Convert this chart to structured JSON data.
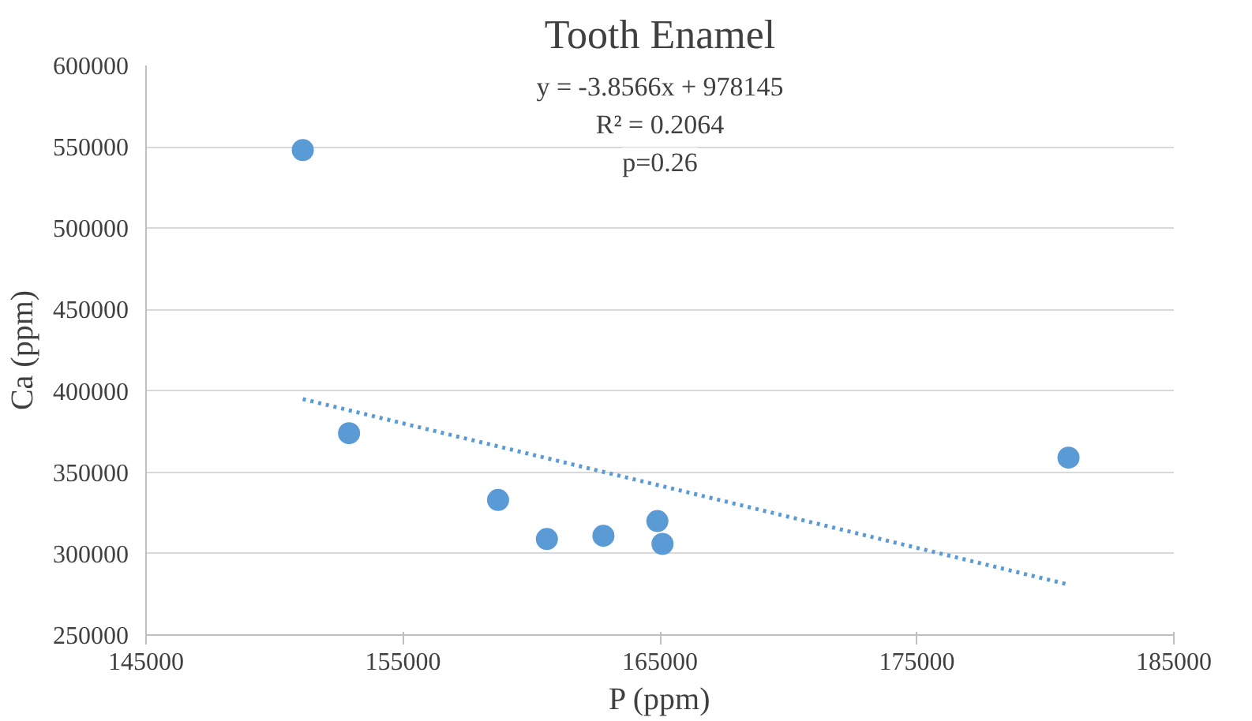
{
  "chart_data": {
    "type": "scatter",
    "title": "Tooth Enamel",
    "xlabel": "P (ppm)",
    "ylabel": "Ca (ppm)",
    "xlim": [
      145000,
      185000
    ],
    "xticks": [
      145000,
      155000,
      165000,
      175000,
      185000
    ],
    "ylim": [
      250000,
      600000
    ],
    "yticks": [
      250000,
      300000,
      350000,
      400000,
      450000,
      500000,
      550000,
      600000
    ],
    "grid": "y",
    "series": [
      {
        "color": "#5b9bd5",
        "marker": "circle",
        "x": [
          151100,
          152900,
          158700,
          160600,
          162800,
          164900,
          165100,
          180900
        ],
        "values": [
          548000,
          374000,
          333000,
          309000,
          311000,
          320000,
          306000,
          359000
        ]
      },
      {
        "type": "line",
        "color": "#5b9bd5",
        "line_style": "dotted",
        "x": [
          151100,
          180900
        ],
        "values": [
          395000,
          281000
        ]
      }
    ],
    "annotations": [
      "y = -3.8566x + 978145",
      "R² = 0.2064",
      "p=0.26"
    ]
  }
}
